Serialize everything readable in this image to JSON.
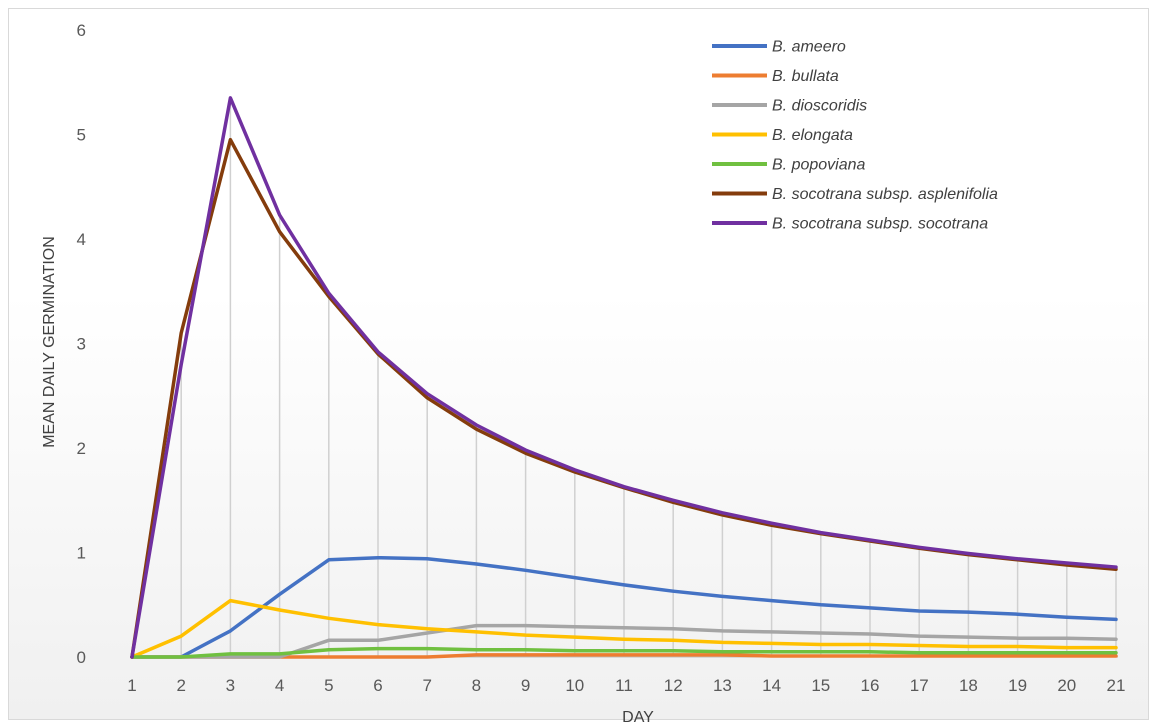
{
  "chart_data": {
    "type": "line",
    "title": "",
    "xlabel": "DAY",
    "ylabel": "MEAN DAILY GERMINATION",
    "ylim": [
      0,
      6
    ],
    "yticks": [
      "0",
      "1",
      "2",
      "3",
      "4",
      "5",
      "6"
    ],
    "x": [
      "1",
      "2",
      "3",
      "4",
      "5",
      "6",
      "7",
      "8",
      "9",
      "10",
      "11",
      "12",
      "13",
      "14",
      "15",
      "16",
      "17",
      "18",
      "19",
      "20",
      "21"
    ],
    "grid": "vertical drop lines",
    "legend": "top-right",
    "series": [
      {
        "name": "B. ameero",
        "color": "#4472C4",
        "values": [
          0,
          0,
          0.25,
          0.6,
          0.93,
          0.95,
          0.94,
          0.89,
          0.83,
          0.76,
          0.69,
          0.63,
          0.58,
          0.54,
          0.5,
          0.47,
          0.44,
          0.43,
          0.41,
          0.38,
          0.36
        ]
      },
      {
        "name": "B. bullata",
        "color": "#ED7D31",
        "values": [
          0,
          0,
          0,
          0,
          0,
          0,
          0,
          0.02,
          0.02,
          0.02,
          0.02,
          0.02,
          0.02,
          0.01,
          0.01,
          0.01,
          0.01,
          0.01,
          0.01,
          0.01,
          0.01
        ]
      },
      {
        "name": "B. dioscoridis",
        "color": "#A5A5A5",
        "values": [
          0,
          0,
          0,
          0,
          0.16,
          0.16,
          0.23,
          0.3,
          0.3,
          0.29,
          0.28,
          0.27,
          0.25,
          0.24,
          0.23,
          0.22,
          0.2,
          0.19,
          0.18,
          0.18,
          0.17
        ]
      },
      {
        "name": "B. elongata",
        "color": "#FFC000",
        "values": [
          0,
          0.2,
          0.54,
          0.45,
          0.37,
          0.31,
          0.27,
          0.24,
          0.21,
          0.19,
          0.17,
          0.16,
          0.14,
          0.13,
          0.12,
          0.12,
          0.11,
          0.1,
          0.1,
          0.09,
          0.09
        ]
      },
      {
        "name": "B. popoviana",
        "color": "#70C040",
        "values": [
          0,
          0,
          0.03,
          0.03,
          0.07,
          0.08,
          0.08,
          0.07,
          0.07,
          0.06,
          0.06,
          0.06,
          0.05,
          0.05,
          0.05,
          0.05,
          0.04,
          0.04,
          0.04,
          0.04,
          0.04
        ]
      },
      {
        "name": "B. socotrana subsp. asplenifolia",
        "color": "#843C0C",
        "values": [
          0,
          3.1,
          4.95,
          4.07,
          3.45,
          2.9,
          2.48,
          2.18,
          1.95,
          1.77,
          1.62,
          1.48,
          1.36,
          1.26,
          1.18,
          1.11,
          1.04,
          0.98,
          0.93,
          0.88,
          0.84
        ]
      },
      {
        "name": "B. socotrana subsp. socotrana",
        "color": "#7030A0",
        "values": [
          0,
          2.8,
          5.35,
          4.23,
          3.48,
          2.92,
          2.52,
          2.22,
          1.98,
          1.79,
          1.63,
          1.5,
          1.38,
          1.28,
          1.19,
          1.12,
          1.05,
          0.99,
          0.94,
          0.9,
          0.86
        ]
      }
    ]
  }
}
